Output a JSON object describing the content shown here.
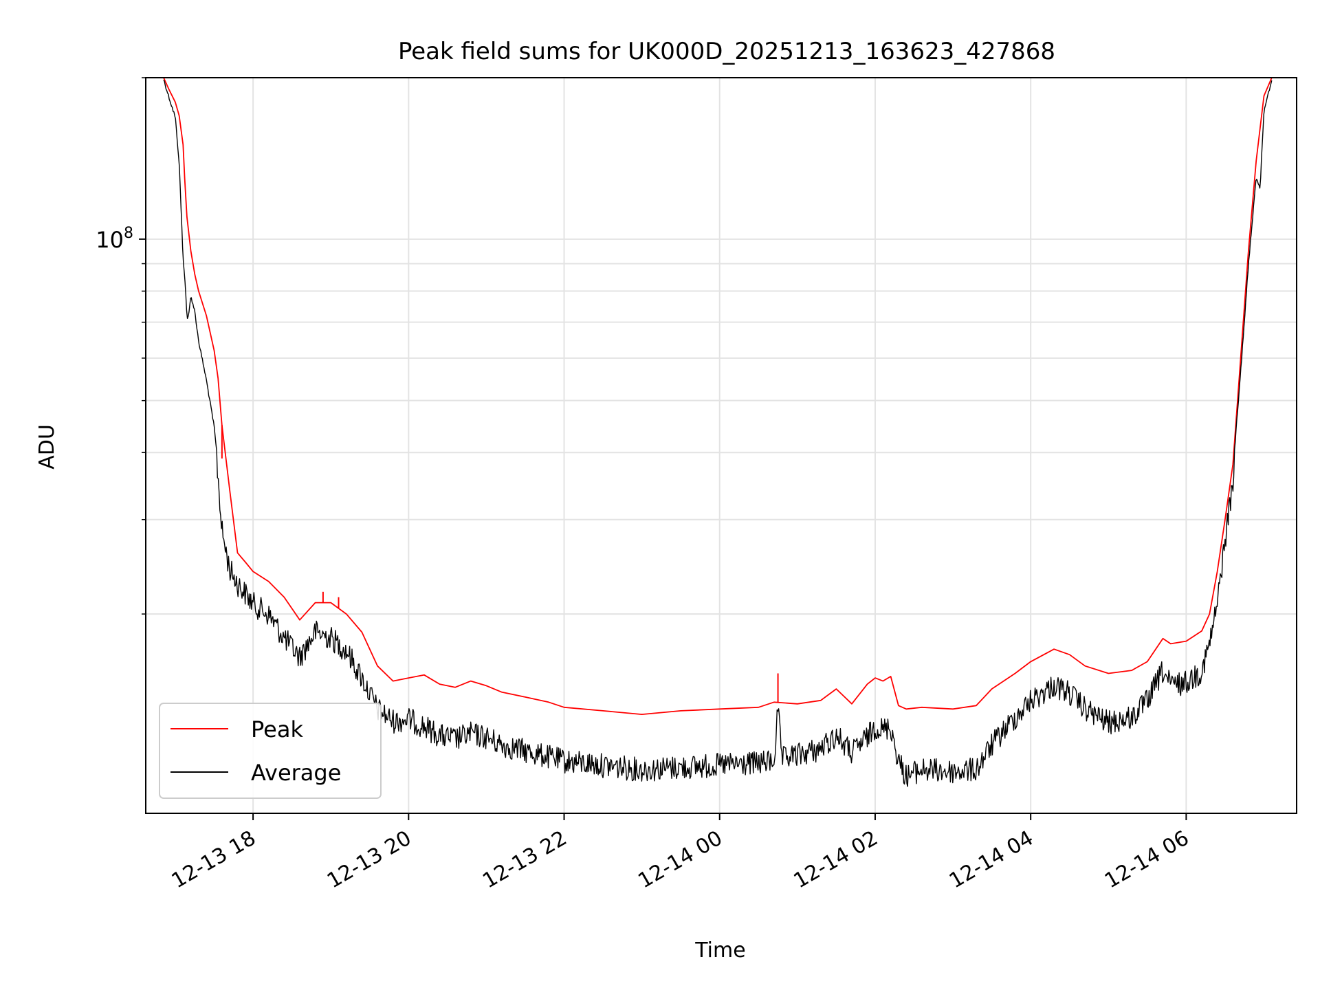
{
  "chart_data": {
    "type": "line",
    "title": "Peak field sums for UK000D_20251213_163623_427868",
    "xlabel": "Time",
    "ylabel": "ADU",
    "yscale": "log",
    "ylim": [
      8500000,
      200000000
    ],
    "xlim": [
      -1.38,
      13.42
    ],
    "grid": true,
    "x_ticks": [
      {
        "value": 0,
        "label": "12-13 18"
      },
      {
        "value": 2,
        "label": "12-13 20"
      },
      {
        "value": 4,
        "label": "12-13 22"
      },
      {
        "value": 6,
        "label": "12-14 00"
      },
      {
        "value": 8,
        "label": "12-14 02"
      },
      {
        "value": 10,
        "label": "12-14 04"
      },
      {
        "value": 12,
        "label": "12-14 06"
      }
    ],
    "y_major_ticks": [
      {
        "value": 100000000,
        "base": "10",
        "exponent": "8"
      }
    ],
    "y_minor_ticks": [
      20000000,
      30000000,
      40000000,
      50000000,
      60000000,
      70000000,
      80000000,
      90000000,
      200000000
    ],
    "legend": {
      "position": "lower-left",
      "entries": [
        {
          "label": "Peak",
          "color": "#ff0000"
        },
        {
          "label": "Average",
          "color": "#000000"
        }
      ]
    },
    "series": [
      {
        "name": "Peak",
        "color": "#ff0000",
        "x": [
          -1.15,
          -1.08,
          -1.0,
          -0.95,
          -0.9,
          -0.88,
          -0.85,
          -0.8,
          -0.75,
          -0.7,
          -0.6,
          -0.5,
          -0.45,
          -0.4,
          -0.3,
          -0.2,
          -0.1,
          0.0,
          0.2,
          0.4,
          0.6,
          0.8,
          1.0,
          1.2,
          1.4,
          1.6,
          1.8,
          2.0,
          2.2,
          2.4,
          2.6,
          2.8,
          3.0,
          3.2,
          3.5,
          3.8,
          4.0,
          4.5,
          5.0,
          5.5,
          6.0,
          6.5,
          6.7,
          7.0,
          7.3,
          7.5,
          7.7,
          7.9,
          8.0,
          8.1,
          8.2,
          8.3,
          8.4,
          8.6,
          9.0,
          9.3,
          9.5,
          9.8,
          10.0,
          10.3,
          10.5,
          10.7,
          11.0,
          11.3,
          11.5,
          11.7,
          11.8,
          12.0,
          12.2,
          12.3,
          12.4,
          12.5,
          12.6,
          12.7,
          12.8,
          12.9,
          13.0,
          13.1
        ],
        "y": [
          200000000,
          190000000,
          180000000,
          170000000,
          150000000,
          130000000,
          110000000,
          95000000,
          86000000,
          80000000,
          72000000,
          62000000,
          55000000,
          45000000,
          34000000,
          26000000,
          25000000,
          24000000,
          23000000,
          21500000,
          19500000,
          21000000,
          21000000,
          20000000,
          18500000,
          16000000,
          15000000,
          15200000,
          15400000,
          14800000,
          14600000,
          15000000,
          14700000,
          14300000,
          14000000,
          13700000,
          13400000,
          13200000,
          13000000,
          13200000,
          13300000,
          13400000,
          13700000,
          13600000,
          13800000,
          14500000,
          13600000,
          14800000,
          15200000,
          15000000,
          15300000,
          13500000,
          13300000,
          13400000,
          13300000,
          13500000,
          14500000,
          15500000,
          16300000,
          17200000,
          16800000,
          16000000,
          15500000,
          15700000,
          16300000,
          18000000,
          17600000,
          17800000,
          18600000,
          20000000,
          24000000,
          30000000,
          38000000,
          60000000,
          95000000,
          140000000,
          185000000,
          200000000
        ],
        "spikes": [
          {
            "x": -0.4,
            "y": 39000000
          },
          {
            "x": 6.75,
            "y": 15500000
          },
          {
            "x": 0.9,
            "y": 22000000
          },
          {
            "x": 1.1,
            "y": 21500000
          }
        ]
      },
      {
        "name": "Average",
        "color": "#000000",
        "x": [
          -1.15,
          -1.08,
          -1.0,
          -0.95,
          -0.92,
          -0.9,
          -0.88,
          -0.85,
          -0.83,
          -0.8,
          -0.75,
          -0.7,
          -0.6,
          -0.5,
          -0.45,
          -0.4,
          -0.3,
          -0.2,
          -0.1,
          0.0,
          0.2,
          0.4,
          0.6,
          0.8,
          1.0,
          1.2,
          1.4,
          1.6,
          1.8,
          2.0,
          2.2,
          2.4,
          2.6,
          2.8,
          3.0,
          3.2,
          3.5,
          3.8,
          4.0,
          4.5,
          5.0,
          5.5,
          6.0,
          6.5,
          6.7,
          6.75,
          6.8,
          7.0,
          7.3,
          7.5,
          7.7,
          7.9,
          8.0,
          8.1,
          8.2,
          8.3,
          8.4,
          8.6,
          9.0,
          9.3,
          9.5,
          9.8,
          10.0,
          10.3,
          10.5,
          10.7,
          11.0,
          11.3,
          11.5,
          11.7,
          11.8,
          12.0,
          12.2,
          12.3,
          12.4,
          12.5,
          12.6,
          12.7,
          12.8,
          12.9,
          12.95,
          13.0,
          13.1
        ],
        "y": [
          200000000,
          185000000,
          170000000,
          140000000,
          110000000,
          92000000,
          87000000,
          72000000,
          72000000,
          79000000,
          74000000,
          65000000,
          55000000,
          45000000,
          38000000,
          30000000,
          25500000,
          24000000,
          23000000,
          22000000,
          21000000,
          19000000,
          17500000,
          19500000,
          19000000,
          18000000,
          16000000,
          14000000,
          13300000,
          13400000,
          13000000,
          12500000,
          12300000,
          12600000,
          12400000,
          12000000,
          11700000,
          11400000,
          11200000,
          11000000,
          10800000,
          10900000,
          11000000,
          11100000,
          11200000,
          14000000,
          11300000,
          11500000,
          11800000,
          12500000,
          11600000,
          12400000,
          13000000,
          12800000,
          13000000,
          11200000,
          10500000,
          10800000,
          10700000,
          10800000,
          12000000,
          13500000,
          14500000,
          15500000,
          15000000,
          14000000,
          13200000,
          13500000,
          14500000,
          16500000,
          15500000,
          15700000,
          16500000,
          18500000,
          22000000,
          29000000,
          37000000,
          57000000,
          90000000,
          132000000,
          125000000,
          175000000,
          200000000
        ],
        "noise_pct": 0.1
      }
    ]
  }
}
